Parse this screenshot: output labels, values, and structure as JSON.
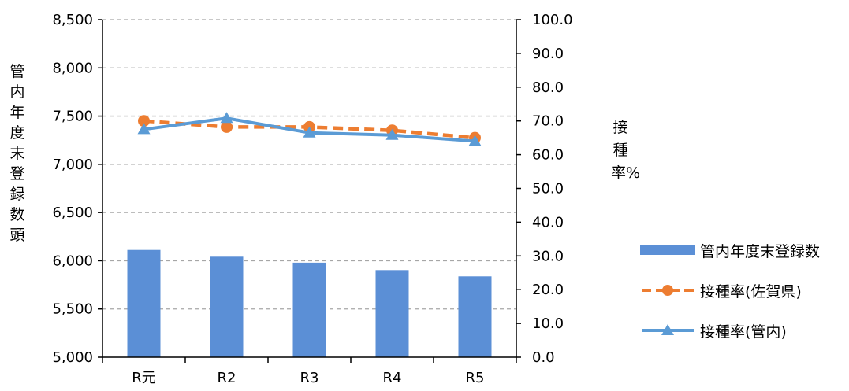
{
  "chart_data": {
    "type": "bar",
    "categories": [
      "R元",
      "R2",
      "R3",
      "R4",
      "R5"
    ],
    "series": [
      {
        "name": "管内年度末登録数",
        "type": "bar",
        "axis": "left",
        "values": [
          6112,
          6042,
          5980,
          5903,
          5838
        ],
        "color": "#5b8fd6"
      },
      {
        "name": "接種率(佐賀県)",
        "type": "line",
        "axis": "right",
        "style": "dashed",
        "marker": "circle",
        "values": [
          70.0,
          68.2,
          68.2,
          67.2,
          65.0
        ],
        "color": "#ed7d31"
      },
      {
        "name": "接種率(管内)",
        "type": "line",
        "axis": "right",
        "style": "solid",
        "marker": "triangle",
        "values": [
          67.5,
          70.8,
          66.5,
          65.8,
          64.0
        ],
        "color": "#5b9bd5"
      }
    ],
    "ylabel": "管内年度末登録数頭",
    "ylabel_right": "接種率%",
    "ylim": [
      5000,
      8500
    ],
    "ylim_right": [
      0,
      100
    ],
    "yticks": [
      "5,000",
      "5,500",
      "6,000",
      "6,500",
      "7,000",
      "7,500",
      "8,000",
      "8,500"
    ],
    "yticks_right": [
      "0.0",
      "10.0",
      "20.0",
      "30.0",
      "40.0",
      "50.0",
      "60.0",
      "70.0",
      "80.0",
      "90.0",
      "100.0"
    ],
    "grid": "horizontal dashed",
    "legend_position": "right"
  },
  "legend": {
    "bar_label": "管内年度末登録数",
    "pref_label": "接種率(佐賀県)",
    "local_label": "接種率(管内)"
  }
}
